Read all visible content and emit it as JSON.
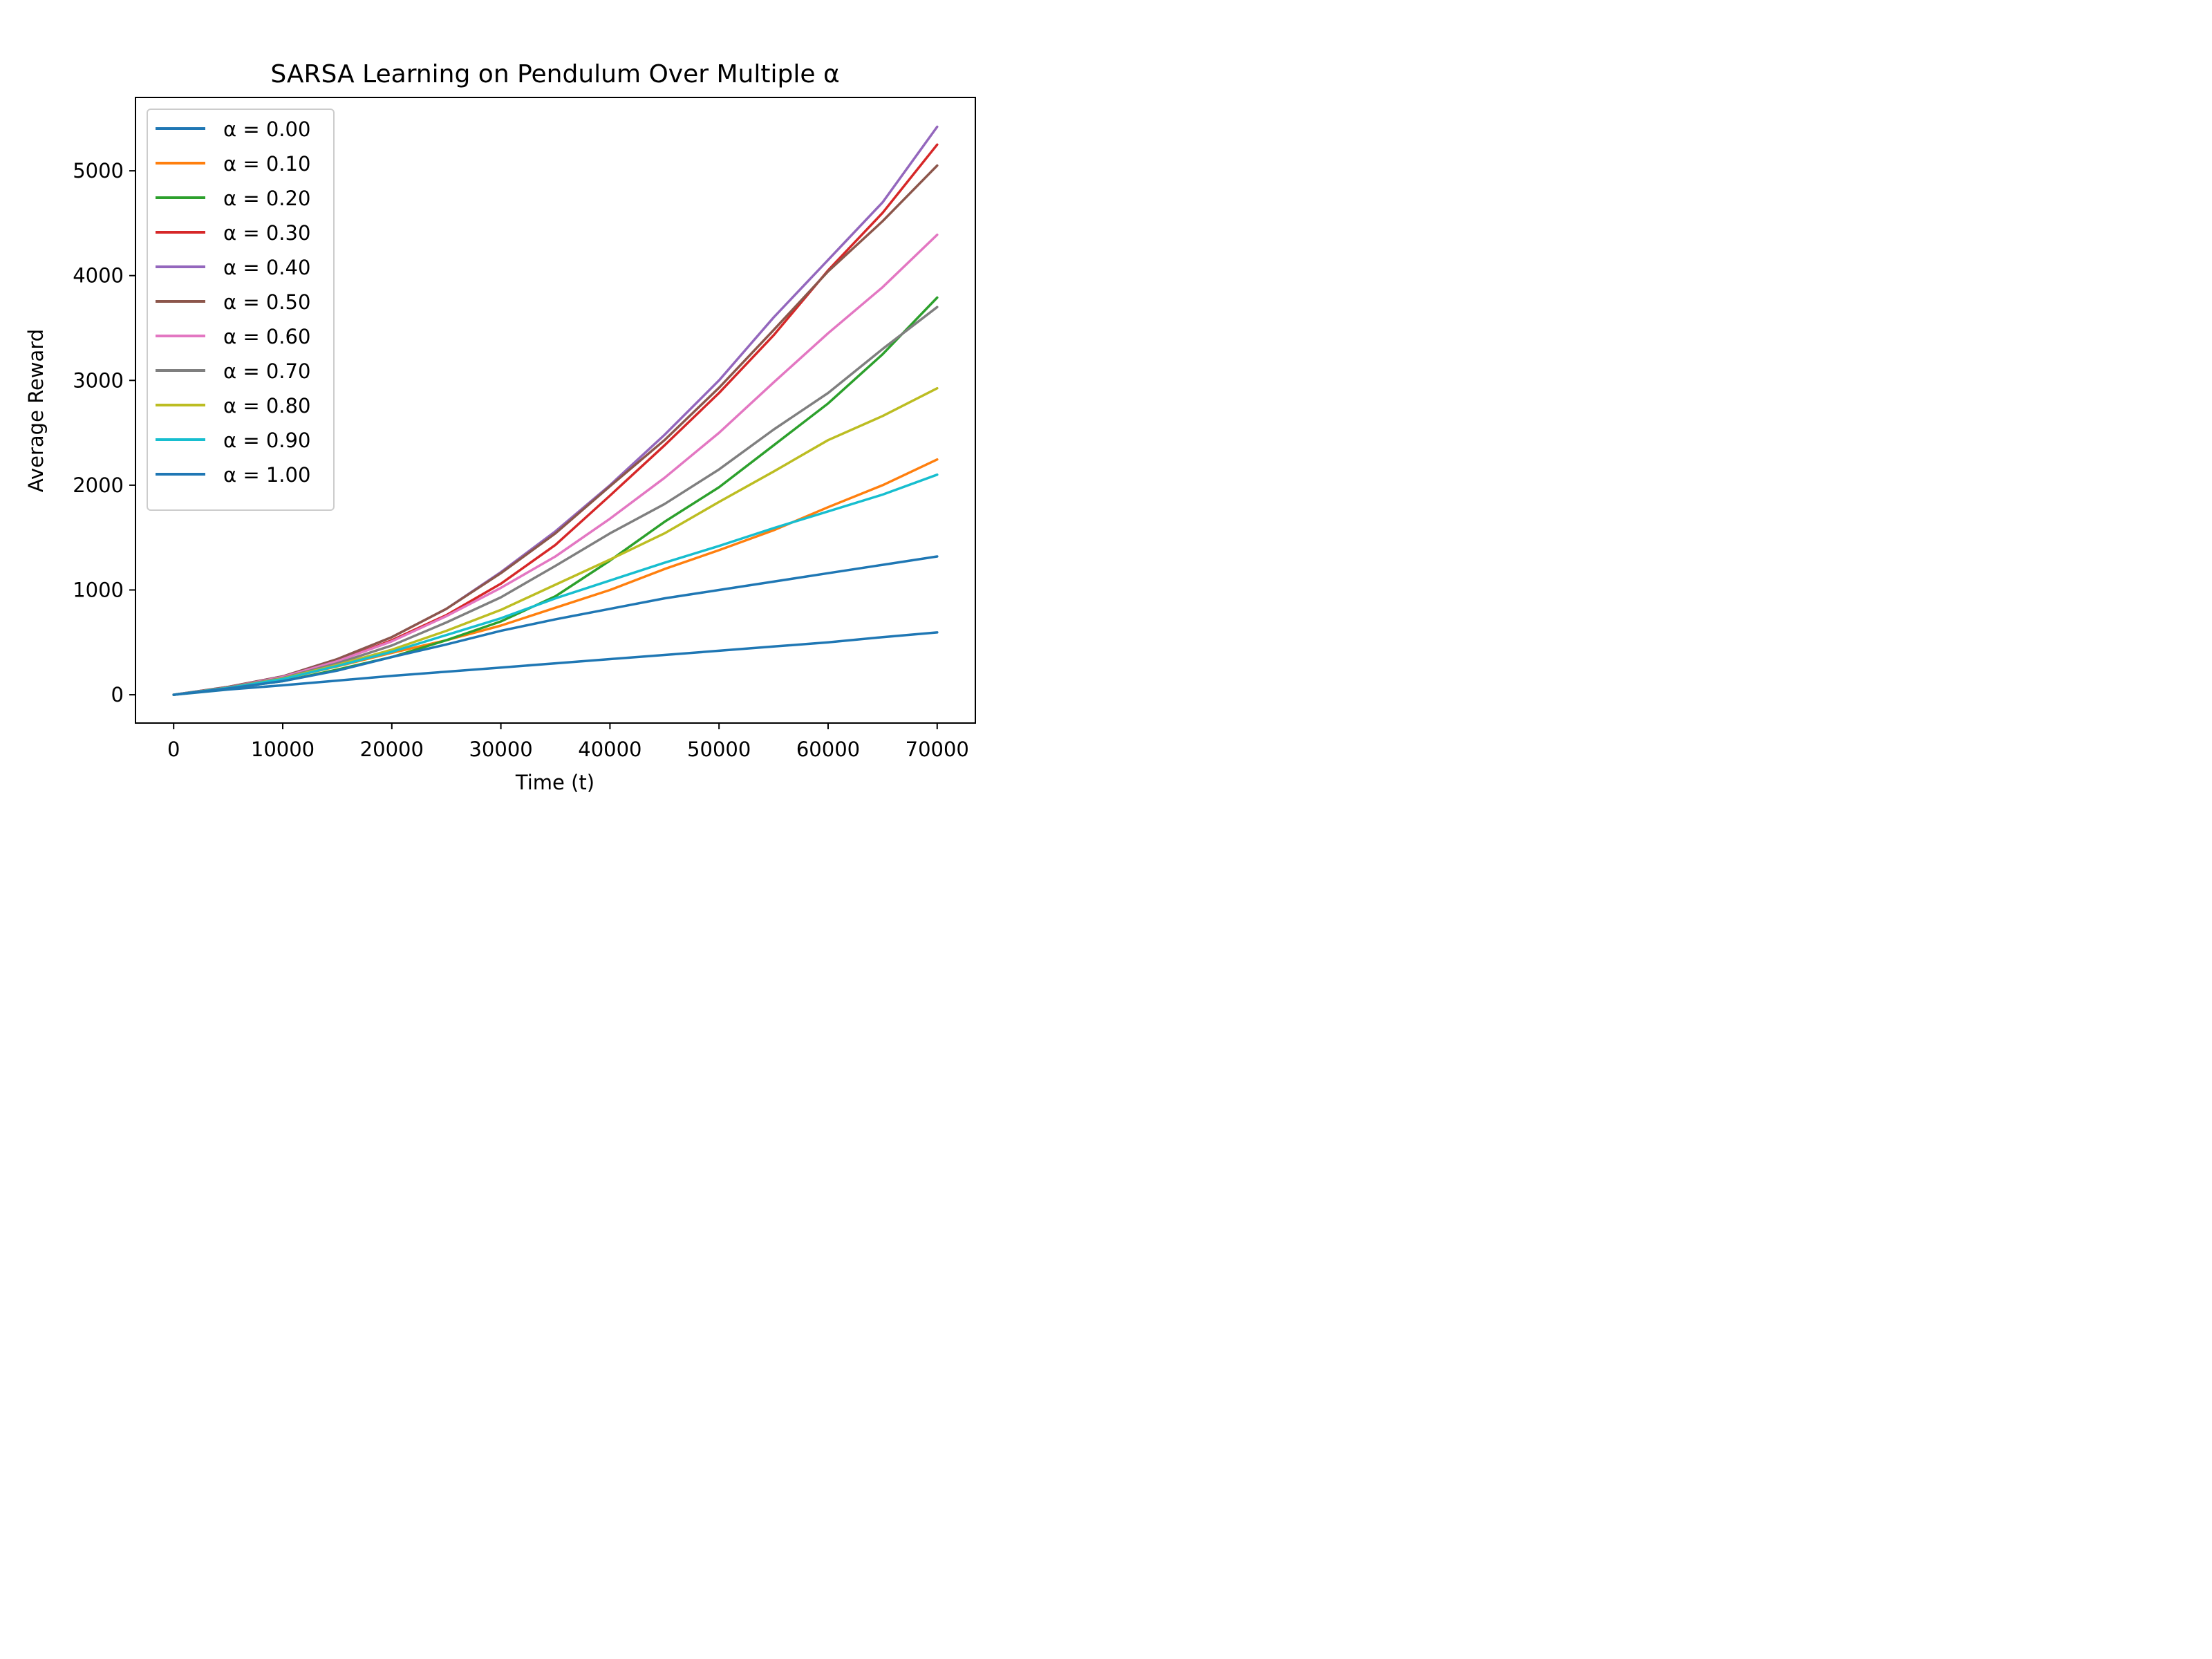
{
  "chart_data": {
    "type": "line",
    "title": "SARSA Learning on Pendulum Over Multiple α",
    "xlabel": "Time (t)",
    "ylabel": "Average Reward",
    "xlim": [
      -3500,
      73500
    ],
    "ylim": [
      -270,
      5700
    ],
    "xticks": [
      0,
      10000,
      20000,
      30000,
      40000,
      50000,
      60000,
      70000
    ],
    "yticks": [
      0,
      1000,
      2000,
      3000,
      4000,
      5000
    ],
    "grid": false,
    "legend_position": "upper-left",
    "x": [
      0,
      5000,
      10000,
      15000,
      20000,
      25000,
      30000,
      35000,
      40000,
      45000,
      50000,
      55000,
      60000,
      65000,
      70000
    ],
    "series": [
      {
        "name": "α = 0.00",
        "color": "#1f77b4",
        "values": [
          0,
          50,
          90,
          135,
          180,
          220,
          260,
          300,
          340,
          380,
          420,
          460,
          500,
          550,
          595
        ]
      },
      {
        "name": "α = 0.10",
        "color": "#ff7f0e",
        "values": [
          0,
          65,
          150,
          270,
          400,
          520,
          660,
          830,
          1000,
          1200,
          1380,
          1570,
          1790,
          2000,
          2245
        ]
      },
      {
        "name": "α = 0.20",
        "color": "#2ca02c",
        "values": [
          0,
          60,
          130,
          240,
          360,
          520,
          700,
          940,
          1280,
          1650,
          1980,
          2380,
          2780,
          3250,
          3790
        ]
      },
      {
        "name": "α = 0.30",
        "color": "#d62728",
        "values": [
          0,
          70,
          165,
          320,
          520,
          760,
          1060,
          1430,
          1900,
          2380,
          2880,
          3430,
          4050,
          4600,
          5250
        ]
      },
      {
        "name": "α = 0.40",
        "color": "#9467bd",
        "values": [
          0,
          75,
          175,
          340,
          550,
          820,
          1170,
          1560,
          2000,
          2480,
          3000,
          3600,
          4150,
          4700,
          5420
        ]
      },
      {
        "name": "α = 0.50",
        "color": "#8c564b",
        "values": [
          0,
          75,
          175,
          340,
          550,
          820,
          1160,
          1540,
          1990,
          2430,
          2930,
          3480,
          4040,
          4520,
          5050
        ]
      },
      {
        "name": "α = 0.60",
        "color": "#e377c2",
        "values": [
          0,
          70,
          170,
          320,
          510,
          750,
          1020,
          1320,
          1680,
          2070,
          2500,
          2980,
          3450,
          3890,
          4390
        ]
      },
      {
        "name": "α = 0.70",
        "color": "#7f7f7f",
        "values": [
          0,
          70,
          160,
          300,
          470,
          690,
          930,
          1230,
          1540,
          1820,
          2150,
          2530,
          2880,
          3300,
          3700
        ]
      },
      {
        "name": "α = 0.80",
        "color": "#bcbd22",
        "values": [
          0,
          65,
          155,
          285,
          430,
          610,
          810,
          1050,
          1290,
          1540,
          1840,
          2130,
          2430,
          2660,
          2925
        ]
      },
      {
        "name": "α = 0.90",
        "color": "#17becf",
        "values": [
          0,
          65,
          150,
          275,
          410,
          570,
          730,
          920,
          1090,
          1260,
          1420,
          1590,
          1750,
          1910,
          2100
        ]
      },
      {
        "name": "α = 1.00",
        "color": "#1f77b4",
        "values": [
          0,
          60,
          130,
          230,
          360,
          480,
          610,
          720,
          820,
          920,
          1000,
          1080,
          1160,
          1240,
          1320
        ]
      }
    ]
  }
}
